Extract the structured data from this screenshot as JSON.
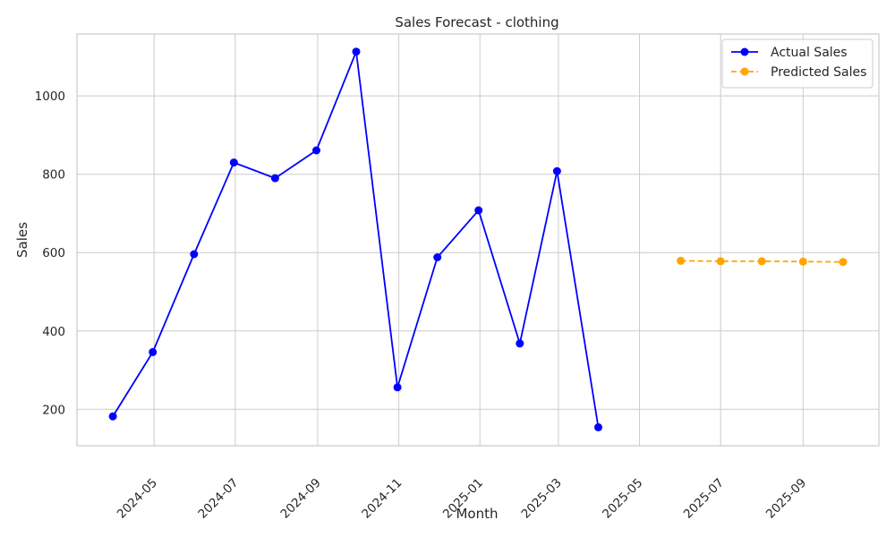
{
  "chart_data": {
    "type": "line",
    "title": "Sales Forecast - clothing",
    "xlabel": "Month",
    "ylabel": "Sales",
    "xlim": [
      "2024-03-04",
      "2025-10-28"
    ],
    "ylim": [
      107,
      1158
    ],
    "x_ticks": [
      "2024-05",
      "2024-07",
      "2024-09",
      "2024-11",
      "2025-01",
      "2025-03",
      "2025-05",
      "2025-07",
      "2025-09"
    ],
    "y_ticks": [
      200,
      400,
      600,
      800,
      1000
    ],
    "grid": true,
    "legend_position": "top-right",
    "series": [
      {
        "name": "Actual Sales",
        "color": "#0000ff",
        "line_style": "solid",
        "marker": "circle",
        "x": [
          "2024-03-31",
          "2024-04-30",
          "2024-05-31",
          "2024-06-30",
          "2024-07-31",
          "2024-08-31",
          "2024-09-30",
          "2024-10-31",
          "2024-11-30",
          "2024-12-31",
          "2025-01-31",
          "2025-02-28",
          "2025-03-31"
        ],
        "values": [
          182,
          346,
          596,
          830,
          790,
          861,
          1113,
          256,
          588,
          708,
          368,
          808,
          154
        ]
      },
      {
        "name": "Predicted Sales",
        "color": "#ffa500",
        "line_style": "dashed",
        "marker": "circle",
        "x": [
          "2025-06-01",
          "2025-07-01",
          "2025-08-01",
          "2025-09-01",
          "2025-10-01"
        ],
        "values": [
          579,
          578,
          578,
          577,
          576
        ]
      }
    ]
  }
}
